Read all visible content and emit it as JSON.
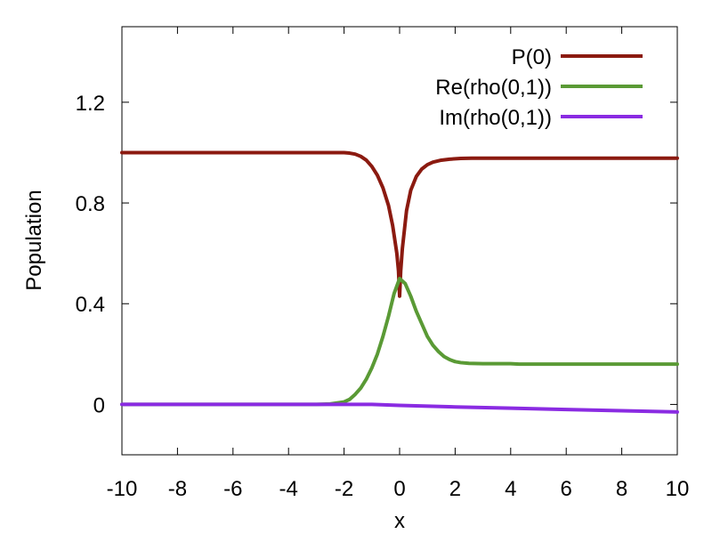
{
  "chart_data": {
    "type": "line",
    "title": "",
    "xlabel": "x",
    "ylabel": "Population",
    "xlim": [
      -10,
      10
    ],
    "ylim": [
      -0.2,
      1.5
    ],
    "xticks": [
      -10,
      -8,
      -6,
      -4,
      -2,
      0,
      2,
      4,
      6,
      8,
      10
    ],
    "xtick_labels": [
      "-10",
      "-8",
      "-6",
      "-4",
      "-2",
      "0",
      "2",
      "4",
      "6",
      "8",
      "10"
    ],
    "yticks": [
      0,
      0.4,
      0.8,
      1.2
    ],
    "ytick_labels": [
      "0",
      "0.4",
      "0.8",
      "1.2"
    ],
    "grid": false,
    "legend_position": "top-right",
    "series": [
      {
        "name": "P(0)",
        "color": "#8b1a10",
        "x": [
          -10,
          -6,
          -3,
          -2,
          -1.8,
          -1.6,
          -1.4,
          -1.2,
          -1.0,
          -0.8,
          -0.6,
          -0.4,
          -0.25,
          -0.1,
          -0.04,
          0,
          0.04,
          0.1,
          0.25,
          0.4,
          0.6,
          0.8,
          1.0,
          1.2,
          1.5,
          1.8,
          2.2,
          2.6,
          4,
          6,
          8,
          10
        ],
        "y": [
          1.0,
          1.0,
          1.0,
          1.0,
          0.998,
          0.994,
          0.985,
          0.97,
          0.945,
          0.91,
          0.86,
          0.79,
          0.71,
          0.6,
          0.53,
          0.43,
          0.53,
          0.62,
          0.77,
          0.85,
          0.905,
          0.935,
          0.952,
          0.962,
          0.97,
          0.974,
          0.977,
          0.978,
          0.978,
          0.978,
          0.978,
          0.978
        ]
      },
      {
        "name": "Re(rho(0,1))",
        "color": "#5a9a35",
        "x": [
          -10,
          -6,
          -3,
          -2.5,
          -2,
          -1.8,
          -1.6,
          -1.4,
          -1.2,
          -1.0,
          -0.8,
          -0.6,
          -0.4,
          -0.2,
          0,
          0.2,
          0.4,
          0.6,
          0.8,
          1.0,
          1.2,
          1.4,
          1.6,
          1.8,
          2.0,
          2.2,
          2.5,
          3,
          4,
          4.3,
          6,
          8,
          10
        ],
        "y": [
          0.0,
          0.0,
          0.0,
          0.002,
          0.01,
          0.02,
          0.04,
          0.065,
          0.1,
          0.145,
          0.2,
          0.27,
          0.35,
          0.44,
          0.5,
          0.48,
          0.43,
          0.37,
          0.32,
          0.27,
          0.235,
          0.21,
          0.19,
          0.178,
          0.17,
          0.166,
          0.163,
          0.162,
          0.162,
          0.16,
          0.16,
          0.16,
          0.16
        ]
      },
      {
        "name": "Im(rho(0,1))",
        "color": "#8a2be2",
        "x": [
          -10,
          -6,
          -3,
          -1,
          0,
          2,
          4,
          6,
          8,
          10
        ],
        "y": [
          0.0,
          0.0,
          0.0,
          0.0,
          -0.004,
          -0.01,
          -0.015,
          -0.02,
          -0.025,
          -0.03
        ]
      }
    ]
  }
}
